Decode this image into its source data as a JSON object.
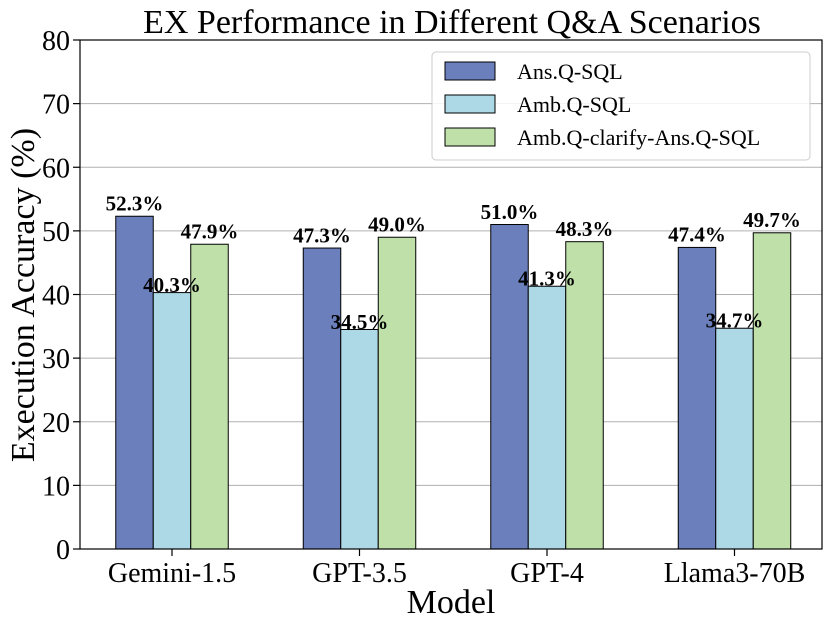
{
  "chart_data": {
    "type": "bar",
    "title": "EX Performance in Different Q&A Scenarios",
    "xlabel": "Model",
    "ylabel": "Execution Accuracy (%)",
    "ylim": [
      0,
      80
    ],
    "yticks": [
      0,
      10,
      20,
      30,
      40,
      50,
      60,
      70,
      80
    ],
    "grid": true,
    "legend_position": "top-right",
    "categories": [
      "Gemini-1.5",
      "GPT-3.5",
      "GPT-4",
      "Llama3-70B"
    ],
    "series": [
      {
        "name": "Ans.Q-SQL",
        "color": "#6a7fbb",
        "values": [
          52.3,
          47.3,
          51.0,
          47.4
        ],
        "labels": [
          "52.3%",
          "47.3%",
          "51.0%",
          "47.4%"
        ]
      },
      {
        "name": "Amb.Q-SQL",
        "color": "#add8e6",
        "values": [
          40.3,
          34.5,
          41.3,
          34.7
        ],
        "labels": [
          "40.3%",
          "34.5%",
          "41.3%",
          "34.7%"
        ]
      },
      {
        "name": "Amb.Q-clarify-Ans.Q-SQL",
        "color": "#bfe0a9",
        "values": [
          47.9,
          49.0,
          48.3,
          49.7
        ],
        "labels": [
          "47.9%",
          "49.0%",
          "48.3%",
          "49.7%"
        ]
      }
    ]
  }
}
